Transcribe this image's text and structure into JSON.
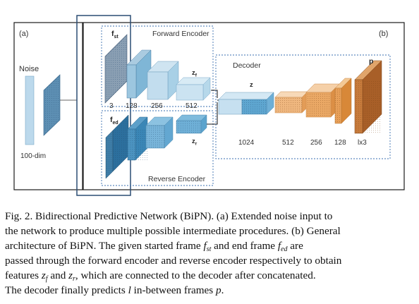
{
  "panel_a": {
    "label": "(a)",
    "noise_label": "Noise",
    "dim_label": "100-dim"
  },
  "panel_b": {
    "label": "(b)",
    "forward_encoder": {
      "title": "Forward Encoder",
      "input_label": "f",
      "input_sub": "st",
      "latent_label": "z",
      "latent_sub": "f",
      "sizes": [
        "3",
        "128",
        "256",
        "512"
      ]
    },
    "reverse_encoder": {
      "title": "Reverse Encoder",
      "input_label": "f",
      "input_sub": "ed",
      "latent_label": "z",
      "latent_sub": "r"
    },
    "decoder": {
      "title": "Decoder",
      "z_label": "z",
      "output_label": "p",
      "sizes": [
        "1024",
        "512",
        "256",
        "128",
        "lx3"
      ]
    }
  },
  "caption": {
    "line1": "Fig. 2.  Bidirectional Predictive Network (BiPN). (a) Extended noise input to",
    "line2": "the network to produce multiple possible intermediate procedures. (b) General",
    "line3a": "architecture of BiPN. The given started frame ",
    "fst_main": "f",
    "fst_sub": "st",
    "line3b": " and end frame ",
    "fed_main": "f",
    "fed_sub": "ed",
    "line3c": " are",
    "line4": "passed through the forward encoder and reverse encoder respectively to obtain",
    "line5a": "features ",
    "zf_main": "z",
    "zf_sub": "f",
    "line5b": " and ",
    "zr_main": "z",
    "zr_sub": "r",
    "line5c": ", which are connected to the decoder after concatenated.",
    "line6a": "The decoder finally predicts ",
    "l_var": "l",
    "line6b": " in-between frames ",
    "p_var": "p",
    "line6c": "."
  },
  "colors": {
    "blue_light": "#b9d7ea",
    "blue_mid": "#7fb6d6",
    "blue_dark": "#3f8dbd",
    "orange_light": "#f2c79a",
    "orange_mid": "#e7a566",
    "brown": "#b86e35",
    "border": "#1c3f66",
    "dash": "#3a6fb0"
  }
}
